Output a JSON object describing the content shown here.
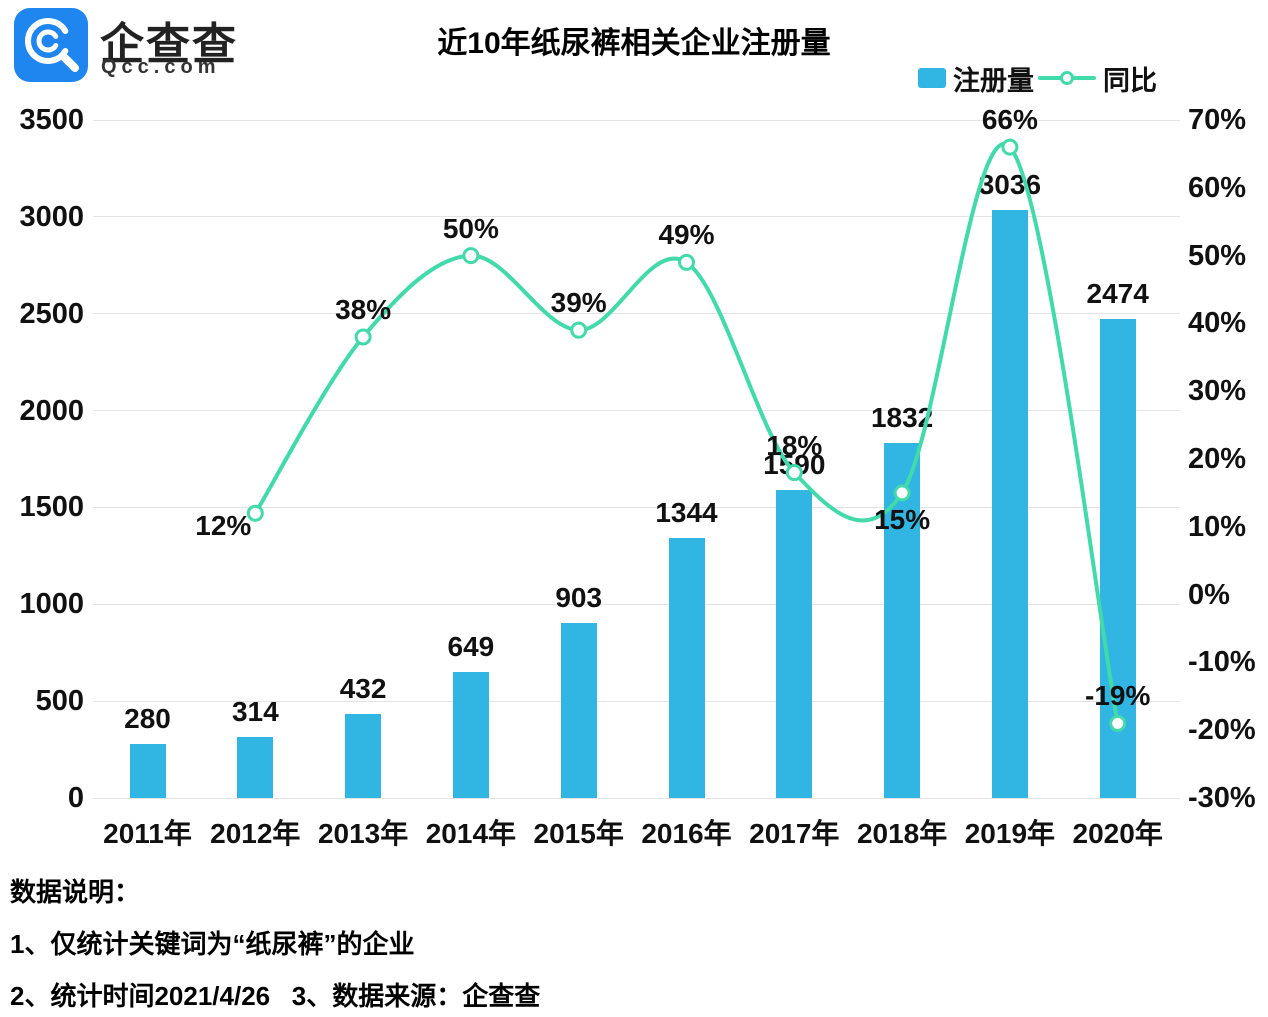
{
  "brand": {
    "name": "企查查",
    "domain": "Qcc.com",
    "logo_color": "#1e86ee"
  },
  "title": "近10年纸尿裤相关企业注册量",
  "chart_data": {
    "type": "bar+line",
    "categories": [
      "2011年",
      "2012年",
      "2013年",
      "2014年",
      "2015年",
      "2016年",
      "2017年",
      "2018年",
      "2019年",
      "2020年"
    ],
    "series": [
      {
        "name": "注册量",
        "type": "bar",
        "axis": "left",
        "color": "#31b5e2",
        "values": [
          280,
          314,
          432,
          649,
          903,
          1344,
          1590,
          1832,
          3036,
          2474
        ],
        "labels": [
          "280",
          "314",
          "432",
          "649",
          "903",
          "1344",
          "1590",
          "1832",
          "3036",
          "2474"
        ]
      },
      {
        "name": "同比",
        "type": "line",
        "axis": "right",
        "color": "#42d9ab",
        "values": [
          null,
          12,
          38,
          50,
          39,
          49,
          18,
          15,
          66,
          -19
        ],
        "labels": [
          null,
          "12%",
          "38%",
          "50%",
          "39%",
          "49%",
          "18%",
          "15%",
          "66%",
          "-19%"
        ],
        "label_placement": [
          null,
          "below-left",
          "above",
          "above",
          "above",
          "above",
          "above",
          "below",
          "above",
          "above"
        ]
      }
    ],
    "left_axis": {
      "min": 0,
      "max": 3500,
      "tick_labels": [
        "3500",
        "3000",
        "2500",
        "2000",
        "1500",
        "1000",
        "500",
        "0"
      ]
    },
    "right_axis": {
      "min": -30,
      "max": 70,
      "tick_labels": [
        "70%",
        "60%",
        "50%",
        "40%",
        "30%",
        "20%",
        "10%",
        "0%",
        "-10%",
        "-20%",
        "-30%"
      ]
    },
    "grid": true,
    "legend_position": "top-right"
  },
  "notes": {
    "heading": "数据说明：",
    "line1": "1、仅统计关键词为“纸尿裤”的企业",
    "line2": "2、统计时间2021/4/26   3、数据来源：企查查"
  }
}
